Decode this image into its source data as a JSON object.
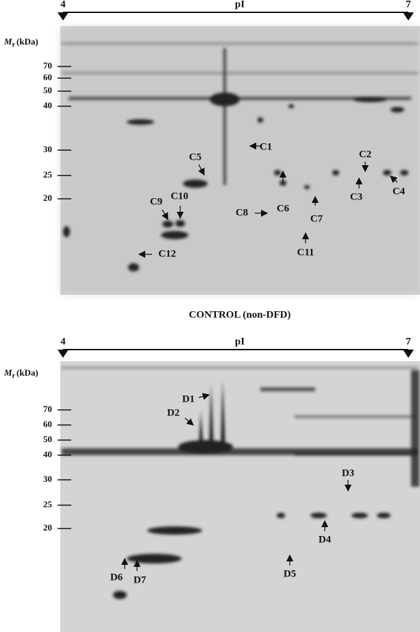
{
  "panels": [
    {
      "axis": {
        "left": "4",
        "label": "pI",
        "right": "7"
      },
      "mr": {
        "symbol": "M",
        "subscript": "r",
        "unit": "(kDa)"
      },
      "mr_ticks": [
        "70",
        "60",
        "50",
        "40",
        "30",
        "25",
        "20"
      ],
      "spots": [
        "C1",
        "C2",
        "C3",
        "C4",
        "C5",
        "C6",
        "C7",
        "C8",
        "C9",
        "C10",
        "C11",
        "C12"
      ],
      "caption": "CONTROL (non-DFD)"
    },
    {
      "axis": {
        "left": "4",
        "label": "pI",
        "right": "7"
      },
      "mr": {
        "symbol": "M",
        "subscript": "r",
        "unit": "(kDa)"
      },
      "mr_ticks": [
        "70",
        "60",
        "50",
        "40",
        "30",
        "25",
        "20"
      ],
      "spots": [
        "D1",
        "D2",
        "D3",
        "D4",
        "D5",
        "D6",
        "D7"
      ]
    }
  ]
}
